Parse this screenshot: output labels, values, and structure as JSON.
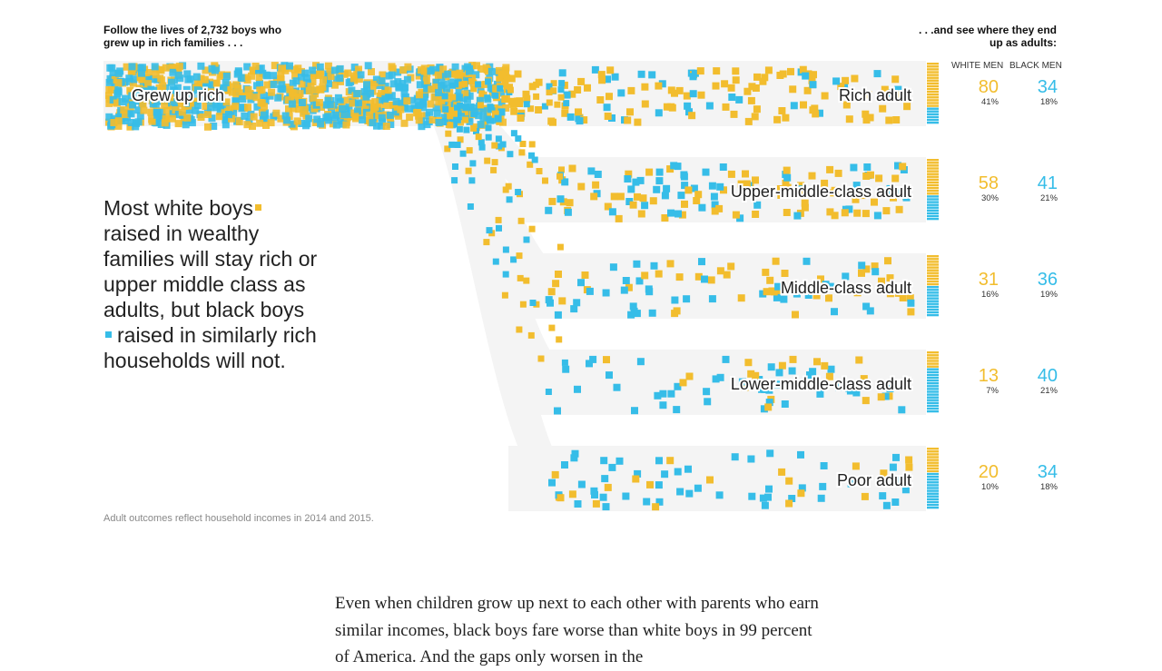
{
  "header": {
    "left_line1": "Follow the lives of  2,732  boys who",
    "left_line2": "grew up in rich families . . .",
    "right_line1": ". . .and see where they end",
    "right_line2": "up as adults:"
  },
  "columns": {
    "white": "WHITE MEN",
    "black": "BLACK MEN"
  },
  "source_label": "Grew up rich",
  "lede": {
    "part1": "Most white boys",
    "part2": "raised in wealthy families will stay rich or upper middle class as adults, but black boys",
    "part3": "raised in similarly rich households will not."
  },
  "note": "Adult outcomes reflect household incomes in 2014 and 2015.",
  "body_text": "Even when children grow up next to each other with parents who earn similar incomes, black boys fare worse than white boys in 99 percent of America. And the gaps only worsen in the",
  "colors": {
    "white": "#f2bd2e",
    "black": "#36bde8",
    "band": "#f4f4f4"
  },
  "chart_data": {
    "type": "flow",
    "total_boys": 2732,
    "source": "Grew up rich",
    "series": [
      {
        "name": "White men",
        "color": "#f2bd2e"
      },
      {
        "name": "Black men",
        "color": "#36bde8"
      }
    ],
    "outcomes": [
      {
        "label": "Rich adult",
        "white": 80,
        "white_pct": "41%",
        "black": 34,
        "black_pct": "18%"
      },
      {
        "label": "Upper-middle-class adult",
        "white": 58,
        "white_pct": "30%",
        "black": 41,
        "black_pct": "21%"
      },
      {
        "label": "Middle-class adult",
        "white": 31,
        "white_pct": "16%",
        "black": 36,
        "black_pct": "19%"
      },
      {
        "label": "Lower-middle-class adult",
        "white": 13,
        "white_pct": "7%",
        "black": 40,
        "black_pct": "21%"
      },
      {
        "label": "Poor adult",
        "white": 20,
        "white_pct": "10%",
        "black": 34,
        "black_pct": "18%"
      }
    ]
  }
}
